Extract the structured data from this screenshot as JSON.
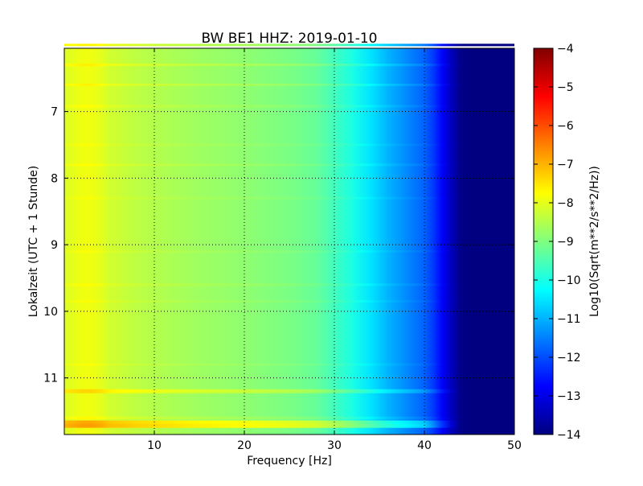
{
  "chart_data": {
    "type": "heatmap",
    "title": "BW BE1 HHZ: 2019-01-10",
    "xlabel": "Frequency [Hz]",
    "ylabel": "Lokalzeit (UTC + 1 Stunde)",
    "xlim": [
      0,
      50
    ],
    "ylim": [
      11.85,
      6.05
    ],
    "x_ticks": [
      10,
      20,
      30,
      40,
      50
    ],
    "y_ticks": [
      7,
      8,
      9,
      10,
      11
    ],
    "grid": true,
    "grid_style": "dotted",
    "colormap": "jet",
    "colorbar": {
      "label": "Log10(Sqrt(m**2/s**2/Hz))",
      "min": -14,
      "max": -4,
      "ticks": [
        -4,
        -5,
        -6,
        -7,
        -8,
        -9,
        -10,
        -11,
        -12,
        -13,
        -14
      ],
      "placement": "right"
    },
    "frequency_profile": {
      "frequency_hz": [
        0,
        1,
        2,
        3,
        4,
        5,
        8,
        10,
        15,
        20,
        25,
        28,
        30,
        32,
        34,
        36,
        38,
        40,
        41,
        42,
        43,
        44,
        45,
        46,
        50
      ],
      "log10_amplitude": [
        -8.1,
        -8.0,
        -7.9,
        -7.9,
        -8.0,
        -8.2,
        -8.4,
        -8.5,
        -8.7,
        -8.85,
        -9.05,
        -9.25,
        -9.6,
        -10.0,
        -10.5,
        -11.0,
        -11.4,
        -11.8,
        -12.2,
        -12.8,
        -13.4,
        -13.9,
        -14.0,
        -14.0,
        -14.0
      ]
    },
    "time_bands": [
      {
        "time": 6.0,
        "delta": 0.25
      },
      {
        "time": 6.3,
        "delta": 0.3
      },
      {
        "time": 6.6,
        "delta": 0.25
      },
      {
        "time": 6.92,
        "delta": 0.15
      },
      {
        "time": 7.5,
        "delta": 0.1
      },
      {
        "time": 7.8,
        "delta": 0.15
      },
      {
        "time": 8.3,
        "delta": 0.1
      },
      {
        "time": 9.1,
        "delta": 0.1
      },
      {
        "time": 9.6,
        "delta": 0.15
      },
      {
        "time": 9.85,
        "delta": 0.1
      },
      {
        "time": 10.8,
        "delta": 0.1
      },
      {
        "time": 11.2,
        "delta": 0.55
      },
      {
        "time": 11.6,
        "delta": 0.2
      },
      {
        "time": 11.67,
        "delta": 1.0
      },
      {
        "time": 11.72,
        "delta": 1.1
      }
    ]
  }
}
